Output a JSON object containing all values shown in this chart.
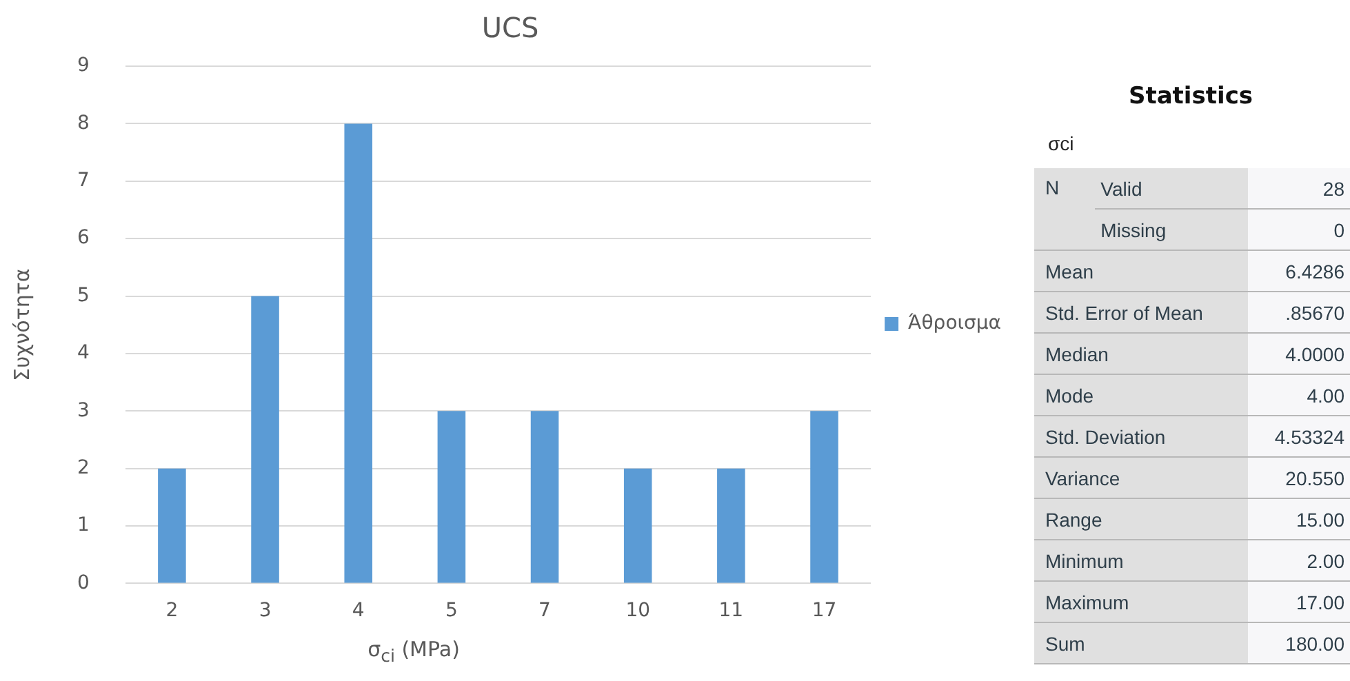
{
  "chart_data": [
    {
      "type": "bar",
      "title": "UCS",
      "xlabel": "σ$_{ci}$ (MPa)",
      "ylabel": "Συχνότητα",
      "categories": [
        "2",
        "3",
        "4",
        "5",
        "7",
        "10",
        "11",
        "17"
      ],
      "series": [
        {
          "name": "Άθροισμα",
          "color": "#5b9bd5",
          "values": [
            2,
            5,
            8,
            3,
            3,
            2,
            2,
            3
          ]
        }
      ],
      "ylim": [
        0,
        9
      ],
      "yticks": [
        0,
        1,
        2,
        3,
        4,
        5,
        6,
        7,
        8,
        9
      ],
      "grid": "y",
      "legend": "right"
    },
    {
      "type": "other",
      "title": "Statistics",
      "subtitle": "σci",
      "annotations": [
        "N",
        "28",
        "0",
        "6.4286",
        ".85670",
        "4.0000",
        "4.00",
        "4.53324",
        "20.550",
        "15.00",
        "2.00",
        "17.00",
        "180.00"
      ],
      "categories": [
        "Valid",
        "Missing",
        "Mean",
        "Std. Error of Mean",
        "Median",
        "Mode",
        "Std. Deviation",
        "Variance",
        "Range",
        "Minimum",
        "Maximum",
        "Sum"
      ]
    }
  ]
}
